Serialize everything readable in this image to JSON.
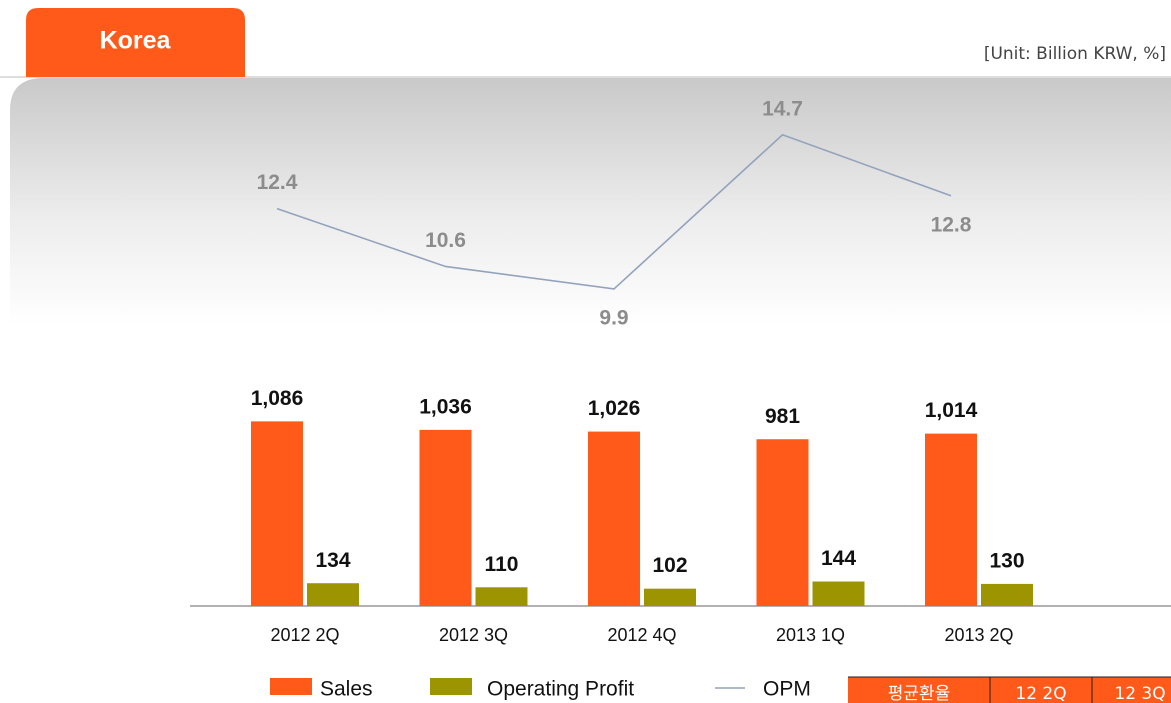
{
  "chart_data": {
    "type": "bar",
    "title": "Korea",
    "subtitle": "[Unit: Billion KRW, %]",
    "categories": [
      "2012 2Q",
      "2012 3Q",
      "2012 4Q",
      "2013 1Q",
      "2013 2Q"
    ],
    "series": [
      {
        "name": "Sales",
        "type": "bar",
        "color": "#ff5a1a",
        "values": [
          1086,
          1036,
          1026,
          981,
          1014
        ],
        "value_labels": [
          "1,086",
          "1,036",
          "1,026",
          "981",
          "1,014"
        ]
      },
      {
        "name": "Operating Profit",
        "type": "bar",
        "color": "#9c9400",
        "values": [
          134,
          110,
          102,
          144,
          130
        ]
      },
      {
        "name": "OPM",
        "type": "line",
        "axis": "y2",
        "color": "#93a3bb",
        "values": [
          12.4,
          10.6,
          9.9,
          14.7,
          12.8
        ]
      }
    ],
    "ylim": [
      0,
      1200
    ],
    "y2lim": [
      8,
      16
    ]
  },
  "table": {
    "header": [
      "평균환율",
      "12 2Q",
      "12 3Q"
    ]
  }
}
